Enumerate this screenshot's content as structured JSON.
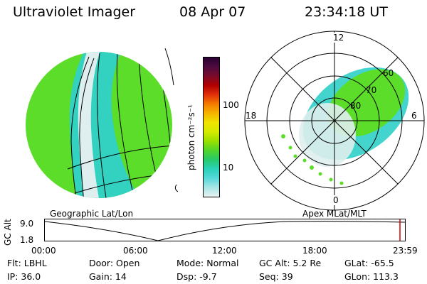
{
  "header": {
    "title": "Ultraviolet Imager",
    "date": "08 Apr 07",
    "time": "23:34:18 UT"
  },
  "colors": {
    "globe": "#5cdd2a",
    "polar_ring": "#000000"
  },
  "colorbar": {
    "unit": "photon cm⁻²s⁻¹",
    "ticks": [
      "100",
      "10"
    ],
    "stops": [
      "#2a0033",
      "#4d0b3f",
      "#7a0b2a",
      "#b10000",
      "#e0300b",
      "#f47a00",
      "#f6b400",
      "#f0e400",
      "#d6ea00",
      "#9be000",
      "#52d52a",
      "#27c96a",
      "#2ad1b9",
      "#56d9d9",
      "#a7e5e5",
      "#e9f2f2"
    ]
  },
  "left_panel": {
    "caption": "Geographic Lat/Lon"
  },
  "right_panel": {
    "caption": "Apex MLat/MLT",
    "mlt_labels": {
      "top": "12",
      "left": "18",
      "right": "6",
      "bottom": "0"
    },
    "lat_labels": [
      "60",
      "70",
      "80"
    ]
  },
  "altitude_plot": {
    "ylabel": "GC Alt",
    "yticks": [
      "9.0",
      "1.8"
    ],
    "xticks": [
      "00:00",
      "06:00",
      "12:00",
      "18:00",
      "23:59"
    ]
  },
  "info": {
    "flt": "Flt: LBHL",
    "ip": "IP: 36.0",
    "door": "Door: Open",
    "gain": "Gain: 14",
    "mode": "Mode: Normal",
    "dsp": "Dsp:   -9.7",
    "gcalt": "GC Alt: 5.2 Re",
    "seq": "Seq: 39",
    "glat": "GLat:  -65.5",
    "glon": "GLon: 113.3"
  }
}
